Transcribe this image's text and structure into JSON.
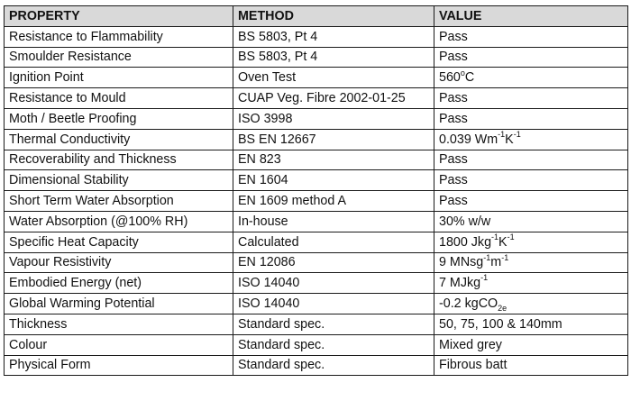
{
  "headers": {
    "property": "PROPERTY",
    "method": "METHOD",
    "value": "VALUE"
  },
  "rows": [
    {
      "property": "Resistance to Flammability",
      "method": "BS 5803, Pt 4",
      "value": [
        {
          "t": "Pass"
        }
      ]
    },
    {
      "property": "Smoulder Resistance",
      "method": "BS 5803, Pt 4",
      "value": [
        {
          "t": "Pass"
        }
      ]
    },
    {
      "property": "Ignition Point",
      "method": "Oven Test",
      "value": [
        {
          "t": "560"
        },
        {
          "sup": "o"
        },
        {
          "t": "C"
        }
      ]
    },
    {
      "property": "Resistance to Mould",
      "method": "CUAP Veg. Fibre 2002-01-25",
      "value": [
        {
          "t": "Pass"
        }
      ]
    },
    {
      "property": "Moth / Beetle Proofing",
      "method": "ISO 3998",
      "value": [
        {
          "t": "Pass"
        }
      ]
    },
    {
      "property": "Thermal Conductivity",
      "method": "BS EN 12667",
      "value": [
        {
          "t": "0.039 Wm"
        },
        {
          "sup": "-1"
        },
        {
          "t": "K"
        },
        {
          "sup": "-1"
        }
      ]
    },
    {
      "property": "Recoverability and Thickness",
      "method": "EN 823",
      "value": [
        {
          "t": "Pass"
        }
      ]
    },
    {
      "property": "Dimensional Stability",
      "method": "EN 1604",
      "value": [
        {
          "t": "Pass"
        }
      ]
    },
    {
      "property": "Short Term Water Absorption",
      "method": "EN 1609 method A",
      "value": [
        {
          "t": "Pass"
        }
      ]
    },
    {
      "property": "Water Absorption (@100% RH)",
      "method": "In-house",
      "value": [
        {
          "t": "30% w/w"
        }
      ]
    },
    {
      "property": "Specific Heat Capacity",
      "method": "Calculated",
      "value": [
        {
          "t": "1800 Jkg"
        },
        {
          "sup": "-1"
        },
        {
          "t": "K"
        },
        {
          "sup": "-1"
        }
      ]
    },
    {
      "property": "Vapour Resistivity",
      "method": "EN 12086",
      "value": [
        {
          "t": "9 MNsg"
        },
        {
          "sup": "-1"
        },
        {
          "t": "m"
        },
        {
          "sup": "-1"
        }
      ]
    },
    {
      "property": "Embodied Energy (net)",
      "method": "ISO 14040",
      "value": [
        {
          "t": "7 MJkg"
        },
        {
          "sup": "-1"
        }
      ]
    },
    {
      "property": "Global Warming Potential",
      "method": "ISO 14040",
      "value": [
        {
          "t": "-0.2 kgCO"
        },
        {
          "sub": "2e"
        }
      ]
    },
    {
      "property": "Thickness",
      "method": "Standard spec.",
      "value": [
        {
          "t": "50, 75, 100 & 140mm"
        }
      ]
    },
    {
      "property": "Colour",
      "method": "Standard spec.",
      "value": [
        {
          "t": "Mixed grey"
        }
      ]
    },
    {
      "property": "Physical Form",
      "method": "Standard spec.",
      "value": [
        {
          "t": "Fibrous batt"
        }
      ]
    }
  ],
  "colors": {
    "header_bg": "#d9d9d9",
    "border": "#1a1a1a",
    "text": "#111111"
  }
}
